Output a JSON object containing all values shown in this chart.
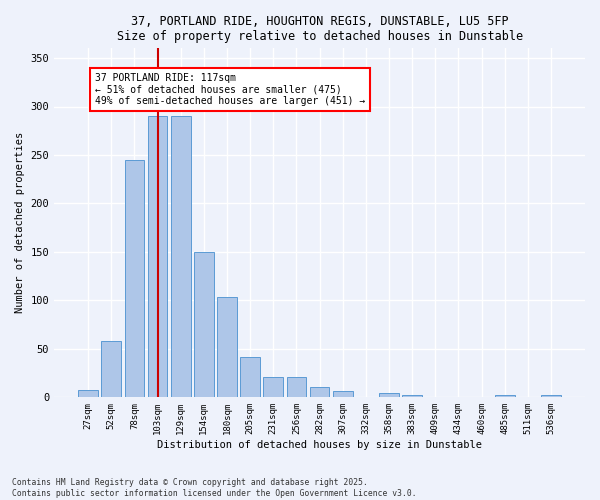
{
  "title_line1": "37, PORTLAND RIDE, HOUGHTON REGIS, DUNSTABLE, LU5 5FP",
  "title_line2": "Size of property relative to detached houses in Dunstable",
  "xlabel": "Distribution of detached houses by size in Dunstable",
  "ylabel": "Number of detached properties",
  "bar_labels": [
    "27sqm",
    "52sqm",
    "78sqm",
    "103sqm",
    "129sqm",
    "154sqm",
    "180sqm",
    "205sqm",
    "231sqm",
    "256sqm",
    "282sqm",
    "307sqm",
    "332sqm",
    "358sqm",
    "383sqm",
    "409sqm",
    "434sqm",
    "460sqm",
    "485sqm",
    "511sqm",
    "536sqm"
  ],
  "bar_values": [
    8,
    58,
    245,
    290,
    290,
    150,
    103,
    42,
    21,
    21,
    11,
    7,
    0,
    4,
    2,
    0,
    0,
    0,
    2,
    0,
    2
  ],
  "bar_color": "#aec6e8",
  "bar_edgecolor": "#5b9bd5",
  "vline_x": 3.0,
  "vline_color": "#cc0000",
  "annotation_text": "37 PORTLAND RIDE: 117sqm\n← 51% of detached houses are smaller (475)\n49% of semi-detached houses are larger (451) →",
  "ylim": [
    0,
    360
  ],
  "yticks": [
    0,
    50,
    100,
    150,
    200,
    250,
    300,
    350
  ],
  "footer_line1": "Contains HM Land Registry data © Crown copyright and database right 2025.",
  "footer_line2": "Contains public sector information licensed under the Open Government Licence v3.0.",
  "bg_color": "#eef2fb",
  "grid_color": "#ffffff"
}
